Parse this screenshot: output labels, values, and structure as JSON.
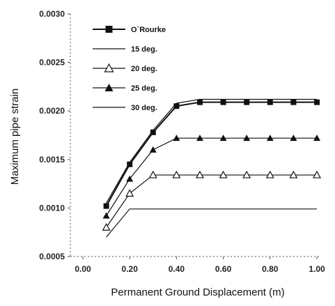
{
  "chart_data": {
    "type": "line",
    "xlabel": "Permanent Ground Displacement (m)",
    "ylabel": "Maximum pipe strain",
    "xlim": [
      0.0,
      1.0
    ],
    "ylim": [
      0.0005,
      0.003
    ],
    "xticks": [
      "0.00",
      "0.20",
      "0.40",
      "0.60",
      "0.80",
      "1.00"
    ],
    "yticks": [
      "0.0005",
      "0.0010",
      "0.0015",
      "0.0020",
      "0.0025",
      "0.0030"
    ],
    "legend_position": "top-left",
    "grid": false,
    "series": [
      {
        "name": "O`Rourke",
        "marker": "filled-square",
        "color": "#111111",
        "x": [
          0.1,
          0.2,
          0.3,
          0.4,
          0.5,
          0.6,
          0.7,
          0.8,
          0.9,
          1.0
        ],
        "y": [
          0.00102,
          0.00145,
          0.00178,
          0.00205,
          0.00209,
          0.00209,
          0.00209,
          0.00209,
          0.00209,
          0.00209
        ]
      },
      {
        "name": "15 deg.",
        "marker": "none",
        "color": "#111111",
        "x": [
          0.1,
          0.2,
          0.3,
          0.4,
          0.5,
          0.6,
          0.7,
          0.8,
          0.9,
          1.0
        ],
        "y": [
          0.00105,
          0.00147,
          0.0018,
          0.00208,
          0.00212,
          0.00212,
          0.00212,
          0.00212,
          0.00212,
          0.00212
        ]
      },
      {
        "name": "20 deg.",
        "marker": "open-triangle",
        "color": "#111111",
        "x": [
          0.1,
          0.2,
          0.3,
          0.4,
          0.5,
          0.6,
          0.7,
          0.8,
          0.9,
          1.0
        ],
        "y": [
          0.0008,
          0.00115,
          0.00134,
          0.00134,
          0.00134,
          0.00134,
          0.00134,
          0.00134,
          0.00134,
          0.00134
        ]
      },
      {
        "name": "25 deg.",
        "marker": "filled-triangle",
        "color": "#111111",
        "x": [
          0.1,
          0.2,
          0.3,
          0.4,
          0.5,
          0.6,
          0.7,
          0.8,
          0.9,
          1.0
        ],
        "y": [
          0.00092,
          0.0013,
          0.0016,
          0.00172,
          0.00172,
          0.00172,
          0.00172,
          0.00172,
          0.00172,
          0.00172
        ]
      },
      {
        "name": "30 deg.",
        "marker": "none",
        "color": "#111111",
        "x": [
          0.1,
          0.2,
          0.3,
          0.4,
          0.5,
          0.6,
          0.7,
          0.8,
          0.9,
          1.0
        ],
        "y": [
          0.0007,
          0.00099,
          0.00099,
          0.00099,
          0.00099,
          0.00099,
          0.00099,
          0.00099,
          0.00099,
          0.00099
        ]
      }
    ]
  }
}
